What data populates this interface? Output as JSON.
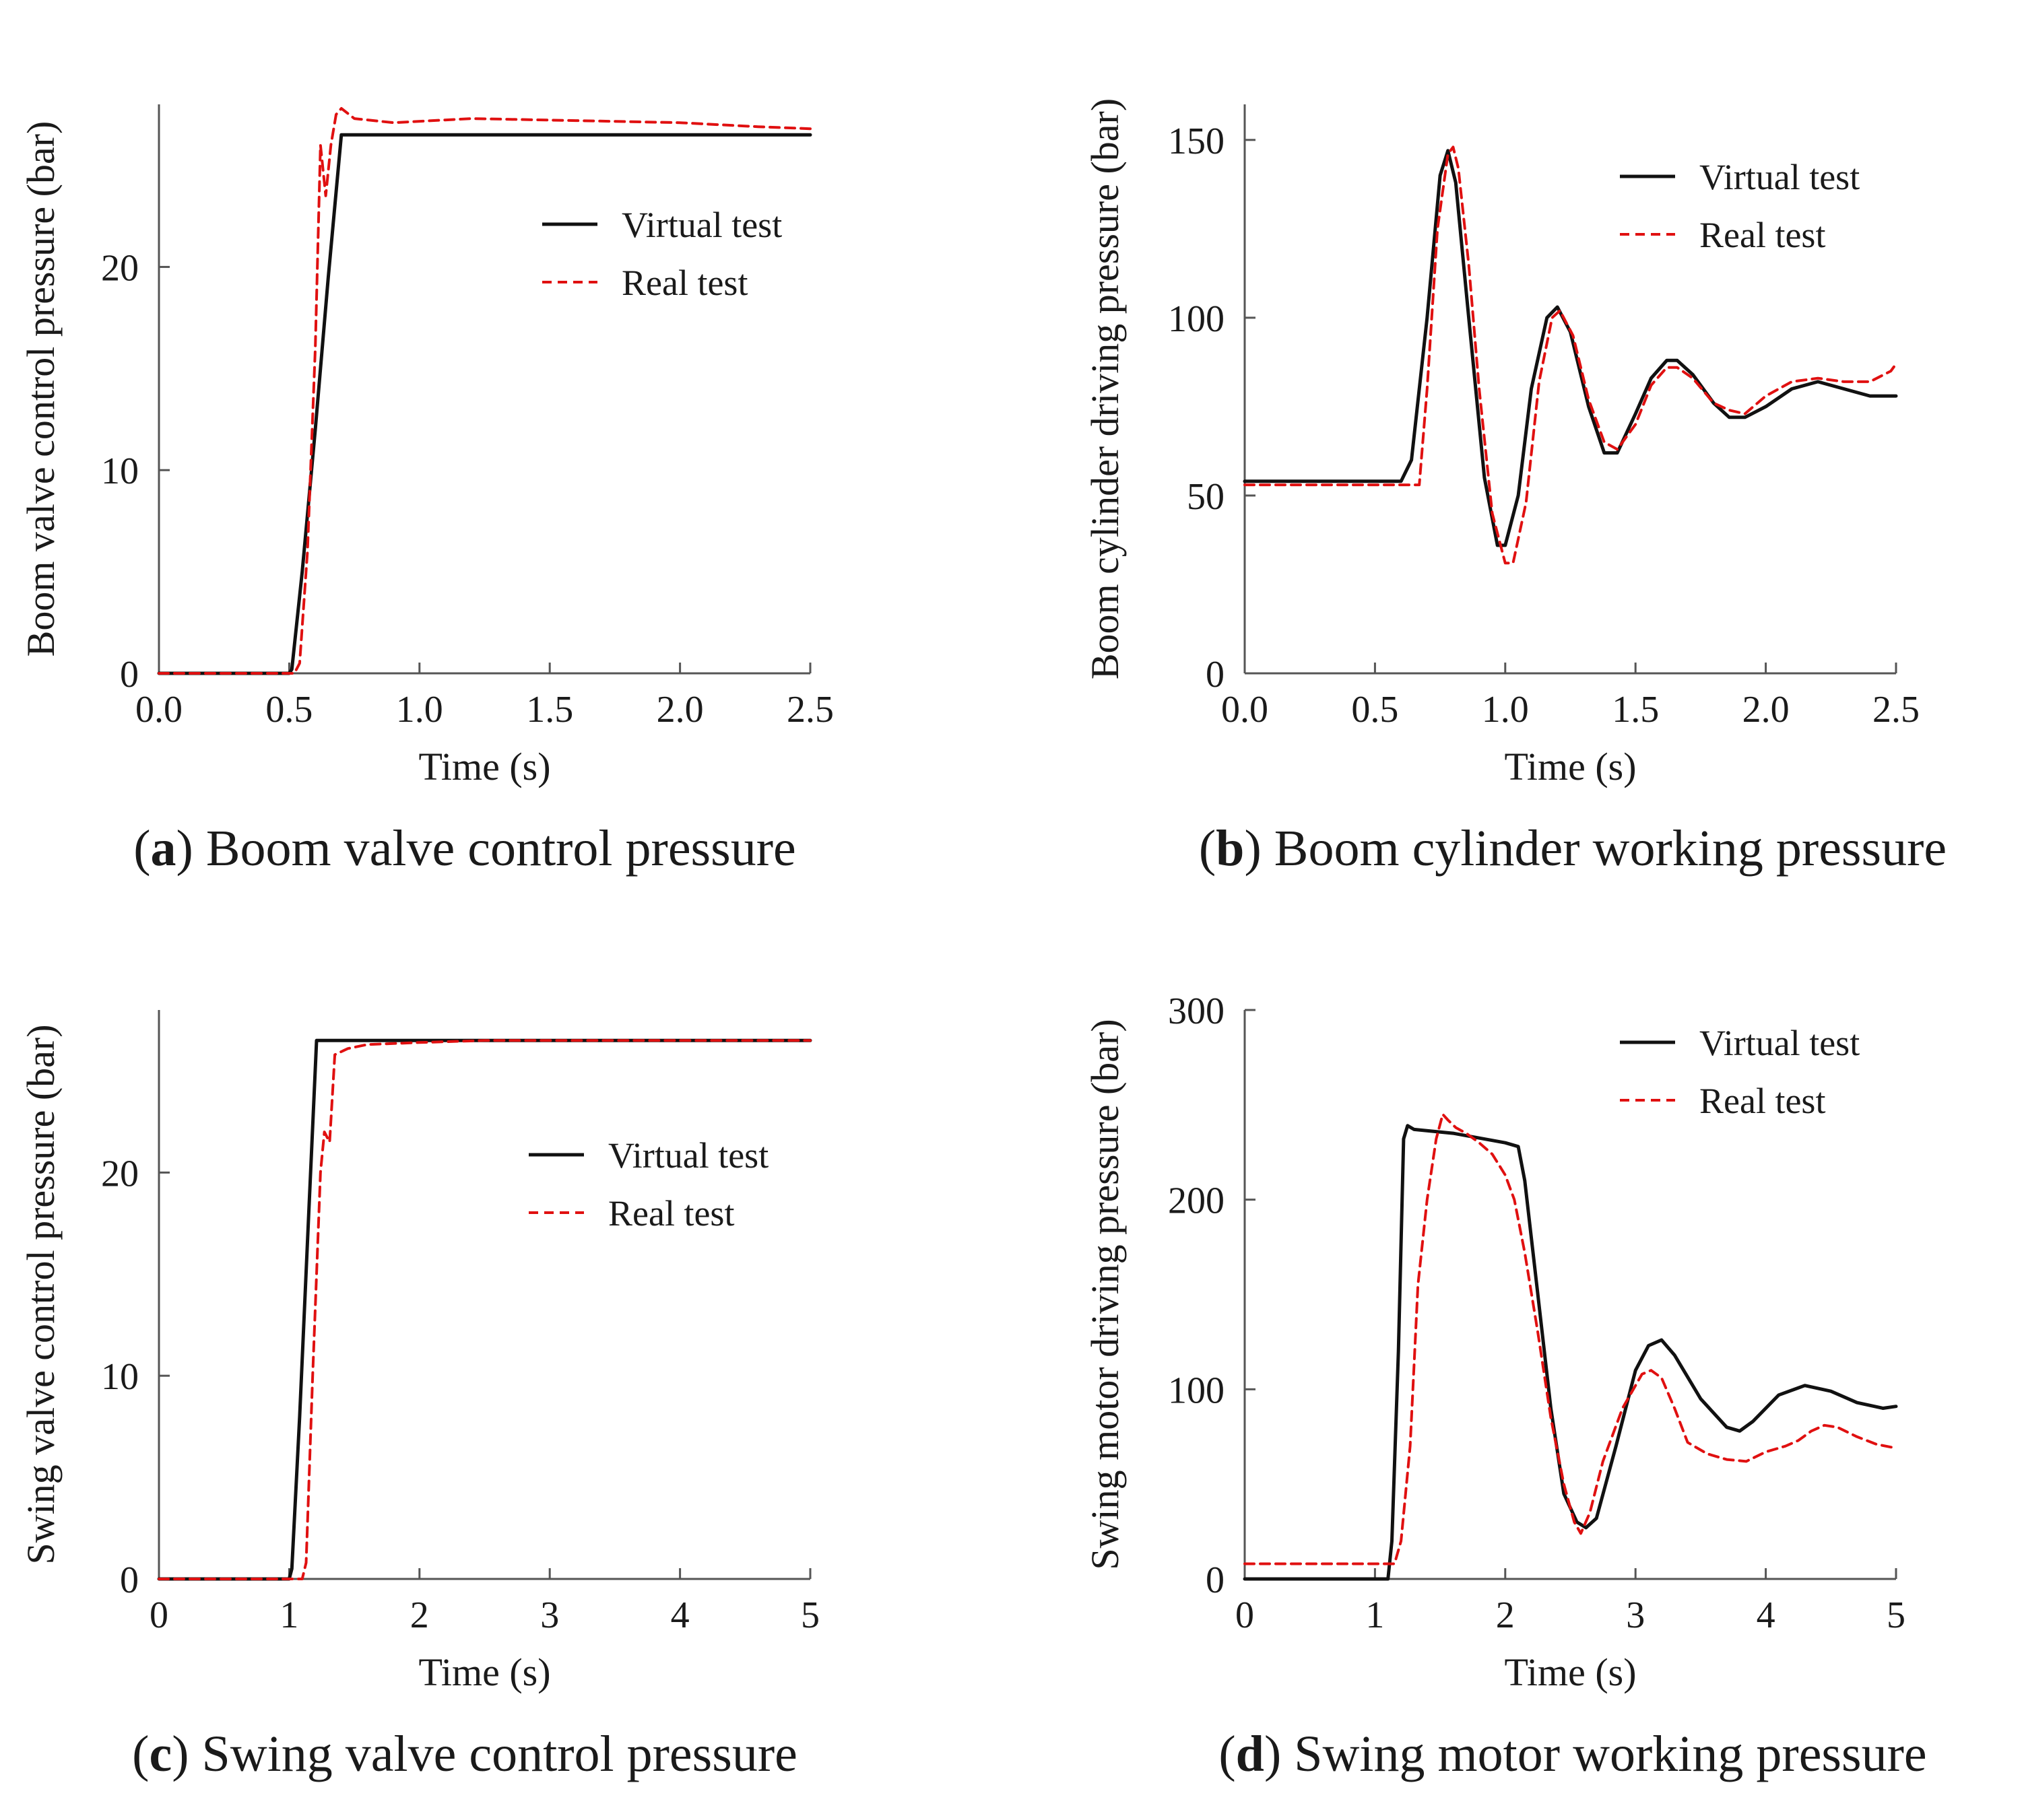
{
  "chart_data": [
    {
      "id": "a",
      "type": "line",
      "caption_letter": "a",
      "caption_text": "Boom valve control pressure",
      "xlabel": "Time (s)",
      "ylabel": "Boom valve control pressure (bar)",
      "xlim": [
        0,
        2.5
      ],
      "ylim": [
        0,
        28
      ],
      "x_ticks": [
        "0.0",
        "0.5",
        "1.0",
        "1.5",
        "2.0",
        "2.5"
      ],
      "x_tick_values": [
        0,
        0.5,
        1.0,
        1.5,
        2.0,
        2.5
      ],
      "y_ticks": [
        "0",
        "10",
        "20"
      ],
      "y_tick_values": [
        0,
        10,
        20
      ],
      "legend": [
        "Virtual test",
        "Real test"
      ],
      "legend_position": "upper-right",
      "series": [
        {
          "name": "Virtual test",
          "color": "#111111",
          "style": "solid",
          "x": [
            0,
            0.5,
            0.51,
            0.55,
            0.6,
            0.65,
            0.7,
            0.75,
            1.0,
            1.5,
            2.0,
            2.5
          ],
          "y": [
            0,
            0,
            0.2,
            5,
            12,
            19.5,
            26.5,
            26.5,
            26.5,
            26.5,
            26.5,
            26.5
          ]
        },
        {
          "name": "Real test",
          "color": "#e01010",
          "style": "dashed",
          "x": [
            0,
            0.52,
            0.54,
            0.57,
            0.6,
            0.62,
            0.64,
            0.66,
            0.68,
            0.7,
            0.75,
            0.9,
            1.2,
            1.6,
            2.0,
            2.3,
            2.5
          ],
          "y": [
            0,
            0,
            0.5,
            6,
            16,
            26,
            23.5,
            26,
            27.5,
            27.8,
            27.3,
            27.1,
            27.3,
            27.2,
            27.1,
            26.9,
            26.8
          ]
        }
      ]
    },
    {
      "id": "b",
      "type": "line",
      "caption_letter": "b",
      "caption_text": "Boom cylinder working pressure",
      "xlabel": "Time (s)",
      "ylabel": "Boom cylinder driving pressure (bar)",
      "xlim": [
        0,
        2.5
      ],
      "ylim": [
        0,
        160
      ],
      "x_ticks": [
        "0.0",
        "0.5",
        "1.0",
        "1.5",
        "2.0",
        "2.5"
      ],
      "x_tick_values": [
        0,
        0.5,
        1.0,
        1.5,
        2.0,
        2.5
      ],
      "y_ticks": [
        "0",
        "50",
        "100",
        "150"
      ],
      "y_tick_values": [
        0,
        50,
        100,
        150
      ],
      "legend": [
        "Virtual test",
        "Real test"
      ],
      "legend_position": "upper-right",
      "series": [
        {
          "name": "Virtual test",
          "color": "#111111",
          "style": "solid",
          "x": [
            0,
            0.6,
            0.64,
            0.7,
            0.75,
            0.78,
            0.81,
            0.86,
            0.92,
            0.97,
            1.0,
            1.05,
            1.1,
            1.16,
            1.2,
            1.25,
            1.32,
            1.38,
            1.43,
            1.5,
            1.56,
            1.62,
            1.66,
            1.72,
            1.8,
            1.86,
            1.92,
            2.0,
            2.1,
            2.2,
            2.3,
            2.4,
            2.5
          ],
          "y": [
            54,
            54,
            60,
            100,
            140,
            147,
            138,
            100,
            55,
            36,
            36,
            50,
            80,
            100,
            103,
            96,
            75,
            62,
            62,
            73,
            83,
            88,
            88,
            84,
            76,
            72,
            72,
            75,
            80,
            82,
            80,
            78,
            78
          ]
        },
        {
          "name": "Real test",
          "color": "#e01010",
          "style": "dashed",
          "x": [
            0,
            0.67,
            0.7,
            0.74,
            0.78,
            0.8,
            0.82,
            0.86,
            0.9,
            0.95,
            1.0,
            1.03,
            1.08,
            1.13,
            1.18,
            1.21,
            1.26,
            1.32,
            1.38,
            1.43,
            1.5,
            1.56,
            1.62,
            1.66,
            1.72,
            1.8,
            1.86,
            1.92,
            2.0,
            2.1,
            2.2,
            2.3,
            2.4,
            2.48,
            2.5
          ],
          "y": [
            53,
            53,
            80,
            125,
            146,
            148,
            142,
            115,
            80,
            45,
            31,
            31,
            48,
            82,
            100,
            102,
            95,
            77,
            65,
            63,
            70,
            81,
            86,
            86,
            83,
            76,
            74,
            73,
            78,
            82,
            83,
            82,
            82,
            85,
            87
          ]
        }
      ]
    },
    {
      "id": "c",
      "type": "line",
      "caption_letter": "c",
      "caption_text": "Swing valve control pressure",
      "xlabel": "Time (s)",
      "ylabel": "Swing valve control pressure (bar)",
      "xlim": [
        0,
        5
      ],
      "ylim": [
        0,
        28
      ],
      "x_ticks": [
        "0",
        "1",
        "2",
        "3",
        "4",
        "5"
      ],
      "x_tick_values": [
        0,
        1,
        2,
        3,
        4,
        5
      ],
      "y_ticks": [
        "0",
        "10",
        "20"
      ],
      "y_tick_values": [
        0,
        10,
        20
      ],
      "legend": [
        "Virtual test",
        "Real test"
      ],
      "legend_position": "center-right",
      "series": [
        {
          "name": "Virtual test",
          "color": "#111111",
          "style": "solid",
          "x": [
            0,
            1.0,
            1.02,
            1.08,
            1.15,
            1.21,
            1.25,
            2,
            3,
            4,
            5
          ],
          "y": [
            0,
            0,
            0.5,
            8,
            18,
            26.5,
            26.5,
            26.5,
            26.5,
            26.5,
            26.5
          ]
        },
        {
          "name": "Real test",
          "color": "#e01010",
          "style": "dashed",
          "x": [
            0,
            1.1,
            1.13,
            1.18,
            1.24,
            1.27,
            1.31,
            1.35,
            1.45,
            1.6,
            2.0,
            2.5,
            3,
            4,
            5
          ],
          "y": [
            0,
            0,
            0.8,
            10,
            20,
            22,
            21.5,
            25.8,
            26.1,
            26.3,
            26.4,
            26.5,
            26.5,
            26.5,
            26.5
          ]
        }
      ]
    },
    {
      "id": "d",
      "type": "line",
      "caption_letter": "d",
      "caption_text": "Swing motor working pressure",
      "xlabel": "Time (s)",
      "ylabel": "Swing motor driving pressure (bar)",
      "xlim": [
        0,
        5
      ],
      "ylim": [
        0,
        300
      ],
      "x_ticks": [
        "0",
        "1",
        "2",
        "3",
        "4",
        "5"
      ],
      "x_tick_values": [
        0,
        1,
        2,
        3,
        4,
        5
      ],
      "y_ticks": [
        "0",
        "100",
        "200",
        "300"
      ],
      "y_tick_values": [
        0,
        100,
        200,
        300
      ],
      "legend": [
        "Virtual test",
        "Real test"
      ],
      "legend_position": "upper-right",
      "series": [
        {
          "name": "Virtual test",
          "color": "#111111",
          "style": "solid",
          "x": [
            0,
            1.1,
            1.13,
            1.18,
            1.22,
            1.25,
            1.3,
            1.6,
            2.0,
            2.1,
            2.15,
            2.25,
            2.35,
            2.45,
            2.55,
            2.62,
            2.7,
            2.85,
            3.0,
            3.1,
            3.2,
            3.3,
            3.5,
            3.7,
            3.8,
            3.9,
            4.1,
            4.3,
            4.5,
            4.7,
            4.9,
            5.0
          ],
          "y": [
            0,
            0,
            20,
            120,
            232,
            239,
            237,
            235,
            230,
            228,
            210,
            150,
            90,
            45,
            30,
            27,
            32,
            70,
            110,
            123,
            126,
            118,
            95,
            80,
            78,
            83,
            97,
            102,
            99,
            93,
            90,
            91
          ]
        },
        {
          "name": "Real test",
          "color": "#e01010",
          "style": "dashed",
          "x": [
            0,
            1.15,
            1.2,
            1.27,
            1.33,
            1.4,
            1.47,
            1.52,
            1.56,
            1.62,
            1.7,
            1.8,
            1.9,
            2.0,
            2.07,
            2.15,
            2.25,
            2.35,
            2.45,
            2.53,
            2.58,
            2.65,
            2.75,
            2.9,
            3.05,
            3.12,
            3.2,
            3.3,
            3.4,
            3.55,
            3.7,
            3.85,
            4.0,
            4.15,
            4.25,
            4.35,
            4.45,
            4.55,
            4.7,
            4.85,
            5.0
          ],
          "y": [
            8,
            8,
            20,
            70,
            155,
            200,
            232,
            245,
            242,
            238,
            235,
            230,
            224,
            213,
            200,
            172,
            130,
            85,
            50,
            30,
            24,
            35,
            62,
            90,
            108,
            110,
            106,
            90,
            72,
            66,
            63,
            62,
            67,
            70,
            73,
            78,
            81,
            80,
            75,
            71,
            69
          ]
        }
      ]
    }
  ]
}
